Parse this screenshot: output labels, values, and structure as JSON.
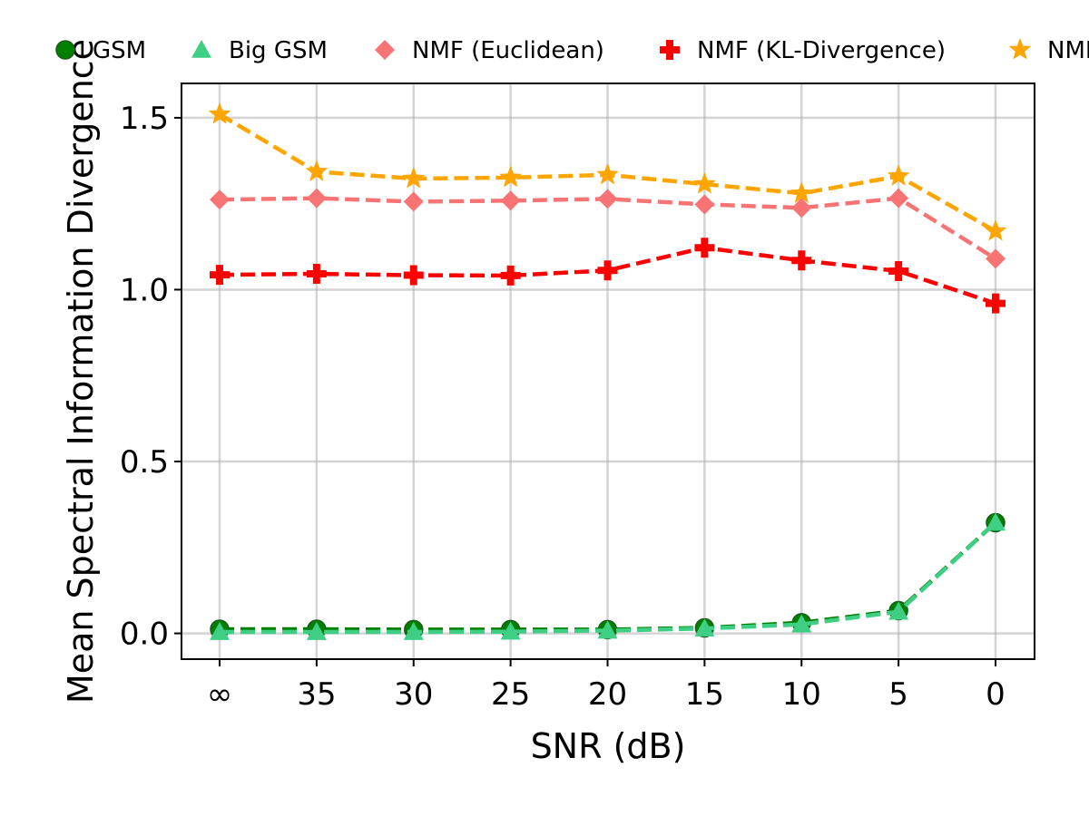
{
  "chart_data": {
    "type": "line",
    "xlabel": "SNR (dB)",
    "ylabel": "Mean Spectral Information Divergence",
    "categories": [
      "∞",
      "35",
      "30",
      "25",
      "20",
      "15",
      "10",
      "5",
      "0"
    ],
    "ylim": [
      -0.075,
      1.6
    ],
    "yticks": [
      0.0,
      0.5,
      1.0,
      1.5
    ],
    "ytick_labels": [
      "0.0",
      "0.5",
      "1.0",
      "1.5"
    ],
    "grid": true,
    "legend_position": "top",
    "series": [
      {
        "name": "GSM",
        "color": "#008000",
        "marker": "circle",
        "values": [
          0.012,
          0.012,
          0.011,
          0.011,
          0.011,
          0.016,
          0.031,
          0.066,
          0.322
        ]
      },
      {
        "name": "Big GSM",
        "color": "#3ecf85",
        "marker": "triangle",
        "values": [
          0.004,
          0.004,
          0.004,
          0.005,
          0.008,
          0.014,
          0.026,
          0.063,
          0.322
        ]
      },
      {
        "name": "NMF (Euclidean)",
        "color": "#f87474",
        "marker": "diamond",
        "values": [
          1.262,
          1.266,
          1.256,
          1.259,
          1.264,
          1.248,
          1.238,
          1.266,
          1.09
        ]
      },
      {
        "name": "NMF (KL-Divergence)",
        "color": "#ff0000",
        "marker": "plus",
        "values": [
          1.043,
          1.046,
          1.042,
          1.041,
          1.056,
          1.122,
          1.085,
          1.054,
          0.96
        ]
      },
      {
        "name": "NMF",
        "color": "#ffa500",
        "marker": "star",
        "values": [
          1.51,
          1.343,
          1.323,
          1.326,
          1.334,
          1.307,
          1.28,
          1.33,
          1.17
        ]
      }
    ]
  }
}
